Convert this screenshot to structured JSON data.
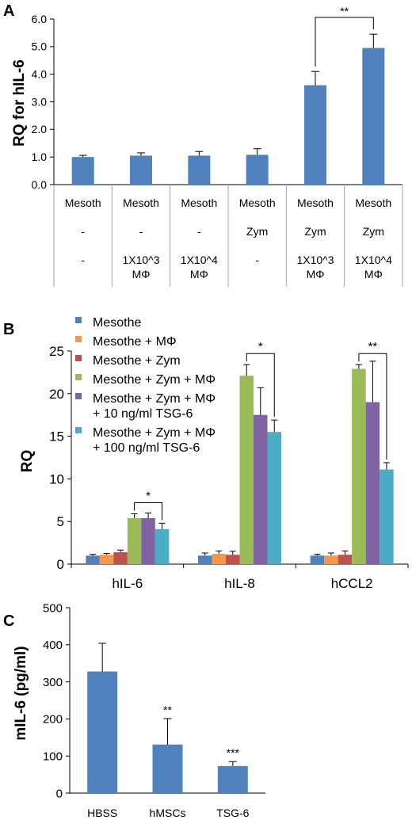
{
  "colors": {
    "blue": "#4F81BD",
    "orange": "#F79646",
    "red": "#C0504D",
    "green": "#9BBB59",
    "purple": "#8064A2",
    "teal": "#4BACC6",
    "axis": "#000000",
    "grid_line": "#A6A6A6"
  },
  "chart_data": [
    {
      "panel_label": "A",
      "type": "bar",
      "ylabel": "RQ for hIL-6",
      "ylim": [
        0,
        6
      ],
      "yticks": [
        "0.0",
        "1.0",
        "2.0",
        "3.0",
        "4.0",
        "5.0",
        "6.0"
      ],
      "categories": [
        [
          "Mesoth",
          "-",
          "-"
        ],
        [
          "Mesoth",
          "-",
          "1X10^3 MΦ"
        ],
        [
          "Mesoth",
          "-",
          "1X10^4 MΦ"
        ],
        [
          "Mesoth",
          "Zym",
          "-"
        ],
        [
          "Mesoth",
          "Zym",
          "1X10^3 MΦ"
        ],
        [
          "Mesoth",
          "Zym",
          "1X10^4 MΦ"
        ]
      ],
      "values": [
        1.0,
        1.05,
        1.05,
        1.08,
        3.6,
        4.95
      ],
      "errors": [
        0.06,
        0.1,
        0.15,
        0.22,
        0.5,
        0.5
      ],
      "significance": [
        {
          "from": 4,
          "to": 5,
          "label": "**"
        }
      ]
    },
    {
      "panel_label": "B",
      "type": "bar",
      "ylabel": "RQ",
      "ylim": [
        0,
        25
      ],
      "yticks": [
        "0",
        "5",
        "10",
        "15",
        "20",
        "25"
      ],
      "categories": [
        "hIL-6",
        "hIL-8",
        "hCCL2"
      ],
      "legend_position": "top-left",
      "series": [
        {
          "name": "Mesothe",
          "values": [
            1.0,
            1.0,
            1.0
          ],
          "errors": [
            0.15,
            0.3,
            0.15
          ]
        },
        {
          "name": "Mesothe + MΦ",
          "values": [
            1.1,
            1.2,
            1.0
          ],
          "errors": [
            0.15,
            0.35,
            0.3
          ]
        },
        {
          "name": "Mesothe + Zym",
          "values": [
            1.4,
            1.1,
            1.1
          ],
          "errors": [
            0.25,
            0.4,
            0.45
          ]
        },
        {
          "name": "Mesothe + Zym + MΦ",
          "values": [
            5.4,
            22.1,
            22.9
          ],
          "errors": [
            0.5,
            1.3,
            0.5
          ]
        },
        {
          "name": "Mesothe + Zym + MΦ\n+ 10 ng/ml TSG-6",
          "values": [
            5.4,
            17.5,
            19.0
          ],
          "errors": [
            0.6,
            3.2,
            4.8
          ]
        },
        {
          "name": "Mesothe + Zym + MΦ\n+ 100 ng/ml TSG-6",
          "values": [
            4.1,
            15.5,
            11.1
          ],
          "errors": [
            0.7,
            1.4,
            0.8
          ]
        }
      ],
      "significance": [
        {
          "category": 0,
          "from": 3,
          "to": 5,
          "label": "*"
        },
        {
          "category": 1,
          "from": 3,
          "to": 5,
          "label": "*"
        },
        {
          "category": 2,
          "from": 3,
          "to": 5,
          "label": "**"
        }
      ]
    },
    {
      "panel_label": "C",
      "type": "bar",
      "ylabel": "mIL-6 (pg/ml)",
      "ylim": [
        0,
        500
      ],
      "yticks": [
        "0",
        "100",
        "200",
        "300",
        "400",
        "500"
      ],
      "categories": [
        "HBSS",
        "hMSCs",
        "TSG-6"
      ],
      "values": [
        328,
        131,
        73
      ],
      "errors": [
        76,
        70,
        12
      ],
      "stars": [
        "",
        "**",
        "***"
      ]
    }
  ]
}
